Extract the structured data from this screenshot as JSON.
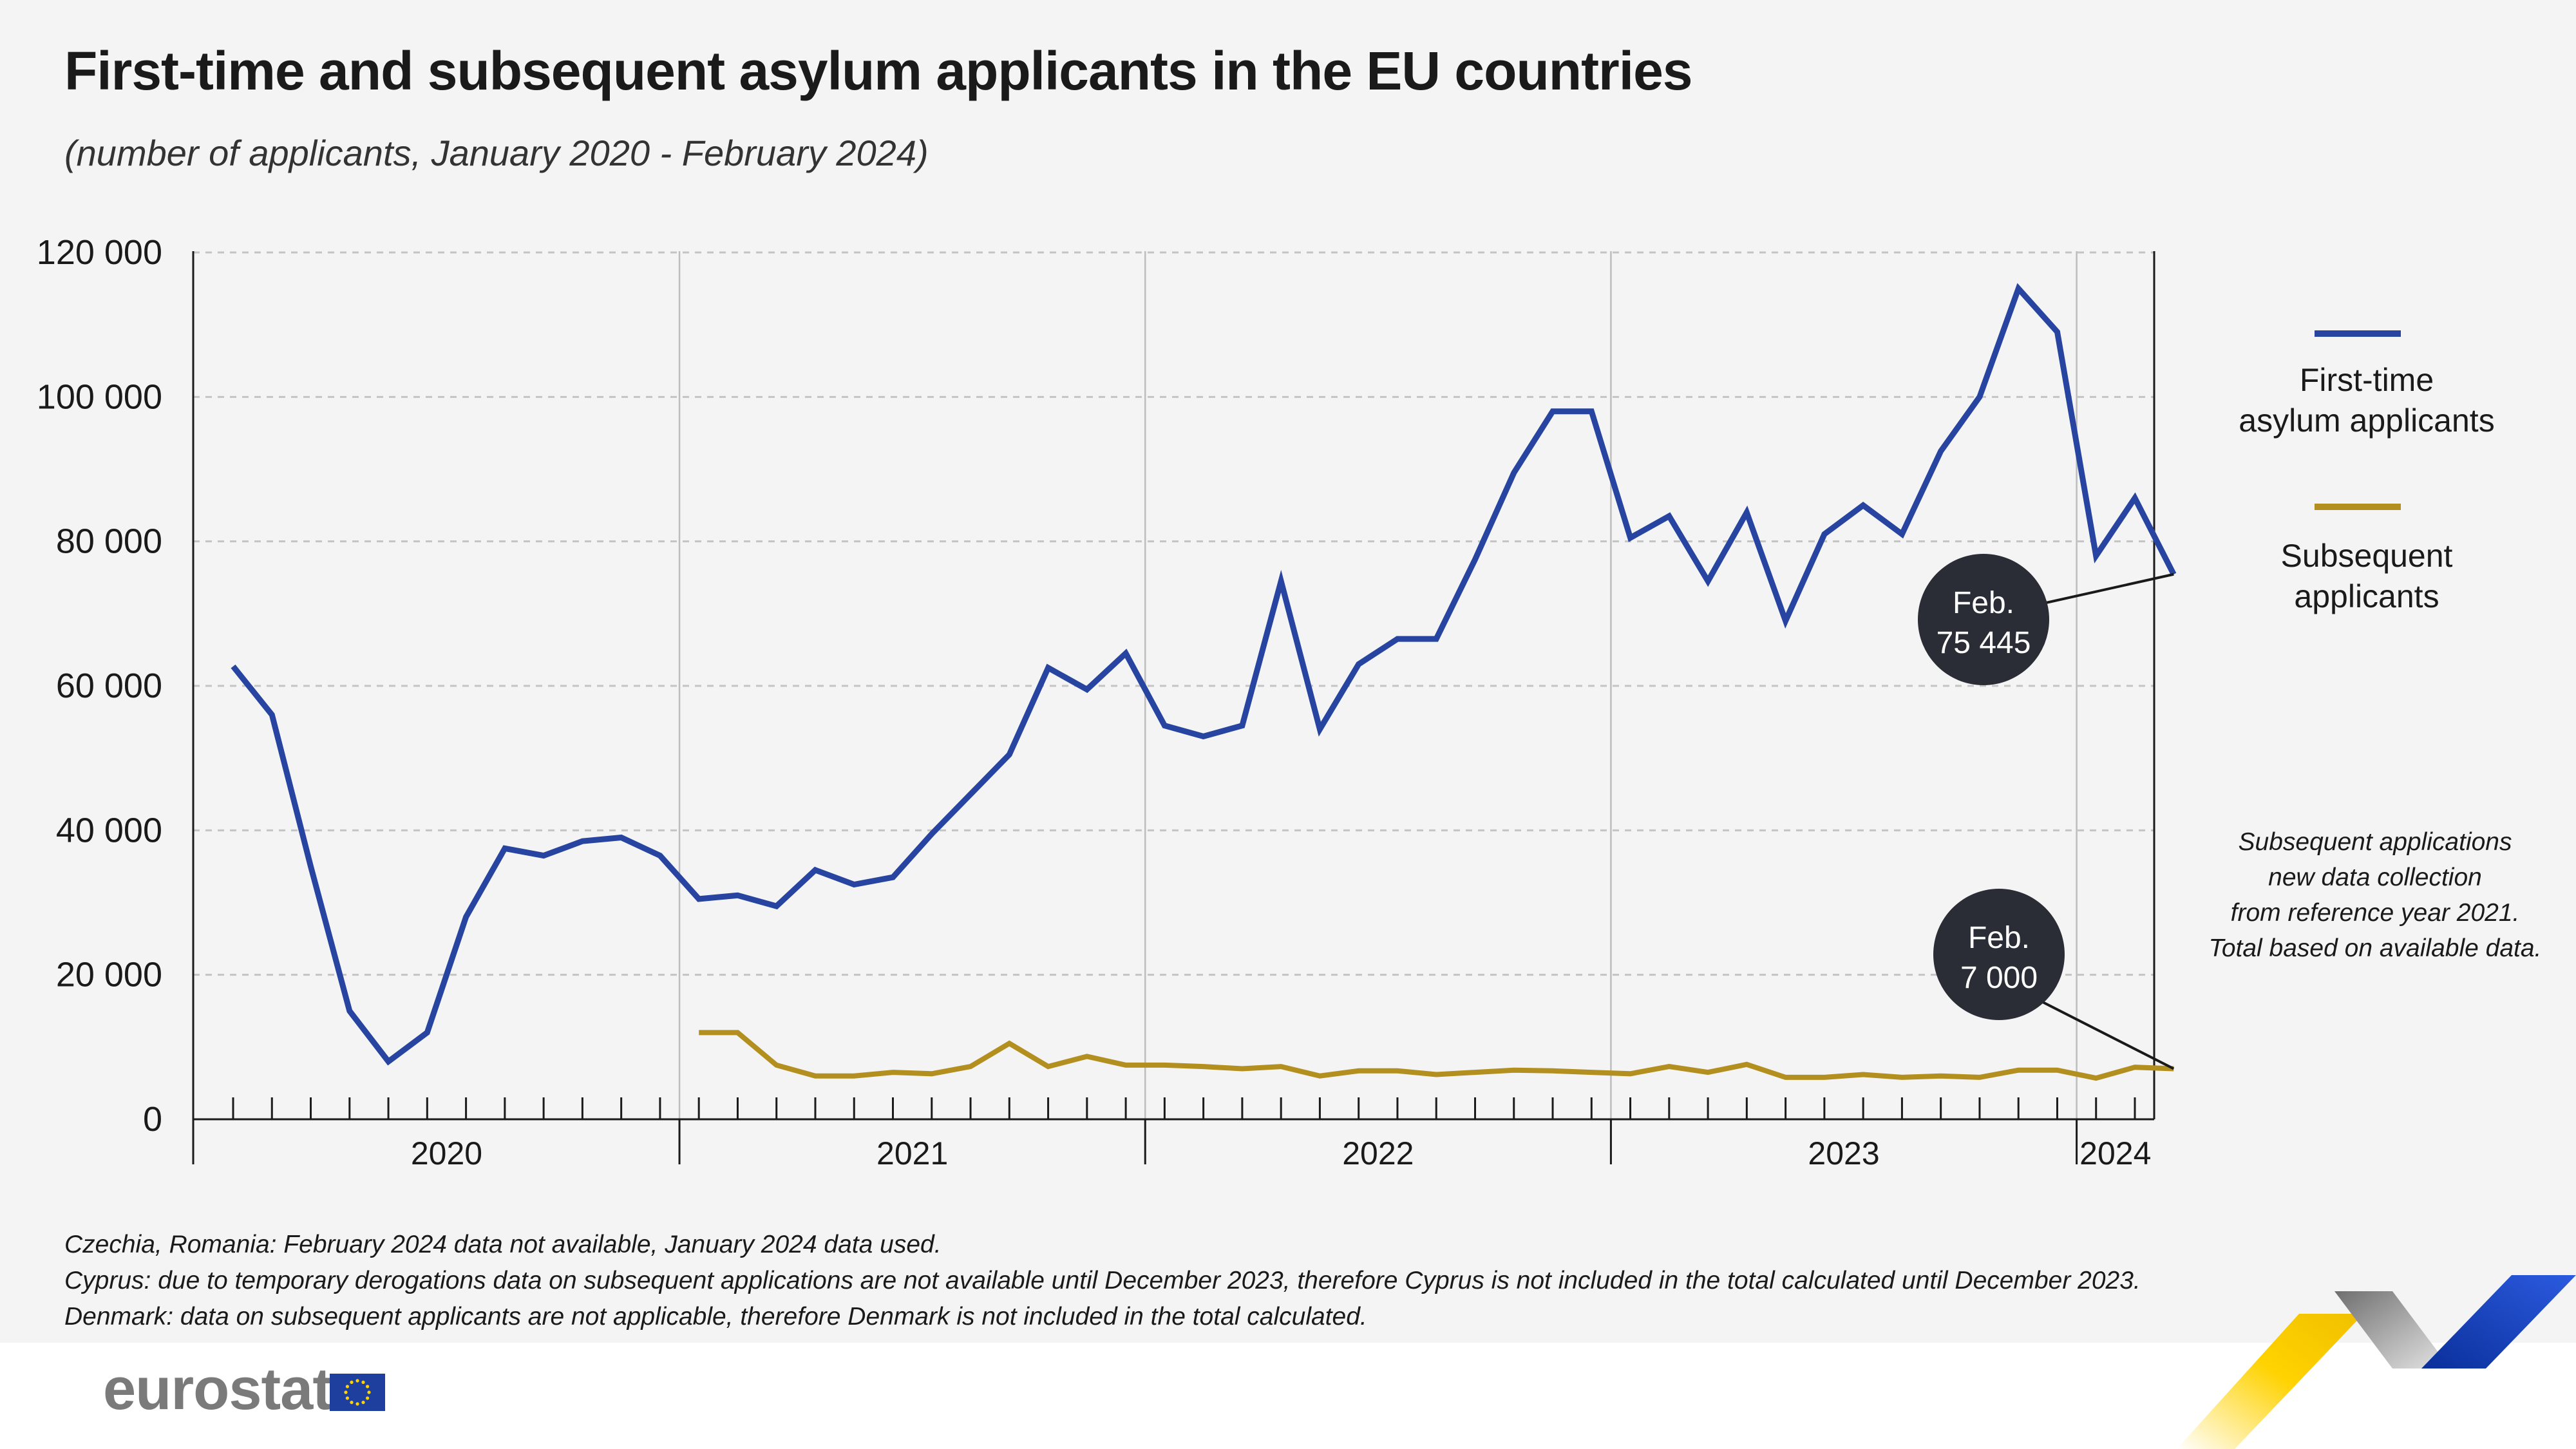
{
  "header": {
    "title": "First-time and subsequent asylum applicants in the EU countries",
    "subtitle": "(number of applicants, January 2020 - February 2024)"
  },
  "chart_data": {
    "type": "line",
    "title": "First-time and subsequent asylum applicants in the EU countries",
    "subtitle": "(number of applicants, January 2020 - February 2024)",
    "xlabel": "",
    "ylabel": "",
    "ylim": [
      0,
      120000
    ],
    "yticks": [
      0,
      20000,
      40000,
      60000,
      80000,
      100000,
      120000
    ],
    "ytick_labels": [
      "0",
      "20 000",
      "40 000",
      "60 000",
      "80 000",
      "100 000",
      "120 000"
    ],
    "grid": "horizontal dashed",
    "x_years": [
      "2020",
      "2021",
      "2022",
      "2023",
      "2024"
    ],
    "x_months_per_year": [
      12,
      12,
      12,
      12,
      2
    ],
    "colors": {
      "first_time": "#2644a0",
      "subsequent": "#b38f20",
      "bubble": "#2a2d35"
    },
    "series": [
      {
        "name": "First-time asylum applicants",
        "start_index": 0,
        "values": [
          62700,
          56000,
          35000,
          15000,
          8000,
          12000,
          28000,
          37500,
          36500,
          38500,
          39000,
          36500,
          30500,
          31000,
          29500,
          34500,
          32500,
          33500,
          39500,
          45000,
          50500,
          62500,
          59500,
          64500,
          54500,
          53000,
          54500,
          74500,
          54000,
          63000,
          66500,
          66500,
          77500,
          89500,
          98000,
          98000,
          80500,
          83500,
          74500,
          84000,
          69000,
          81000,
          85000,
          81000,
          92500,
          100000,
          115000,
          109000,
          78000,
          86000,
          75445
        ]
      },
      {
        "name": "Subsequent applicants",
        "start_index": 12,
        "values": [
          12000,
          12000,
          7500,
          6000,
          6000,
          6500,
          6300,
          7300,
          10500,
          7300,
          8700,
          7500,
          7500,
          7300,
          7000,
          7300,
          6000,
          6700,
          6700,
          6200,
          6500,
          6800,
          6700,
          6500,
          6300,
          7300,
          6500,
          7600,
          5800,
          5800,
          6200,
          5800,
          6000,
          5800,
          6800,
          6800,
          5700,
          7200,
          7000
        ]
      }
    ],
    "legend": {
      "position": "right",
      "first_time_lines": [
        "First-time",
        "asylum applicants"
      ],
      "subsequent_lines": [
        "Subsequent",
        "applicants"
      ]
    },
    "annotations": [
      {
        "series": "First-time asylum applicants",
        "line1": "Feb.",
        "line2": "75 445"
      },
      {
        "series": "Subsequent applicants",
        "line1": "Feb.",
        "line2": "7 000"
      }
    ],
    "note_lines": [
      "Subsequent applications",
      "new data collection",
      "from reference year 2021.",
      "Total based on available data."
    ]
  },
  "footnotes": [
    "Czechia, Romania: February 2024 data not available, January 2024 data used.",
    "Cyprus: due to temporary derogations data on subsequent applications are not available until December 2023, therefore Cyprus is not included in the total calculated until December 2023.",
    "Denmark: data on subsequent applicants are not applicable, therefore Denmark is not included in the total calculated."
  ],
  "footer": {
    "logo_text": "eurostat"
  }
}
